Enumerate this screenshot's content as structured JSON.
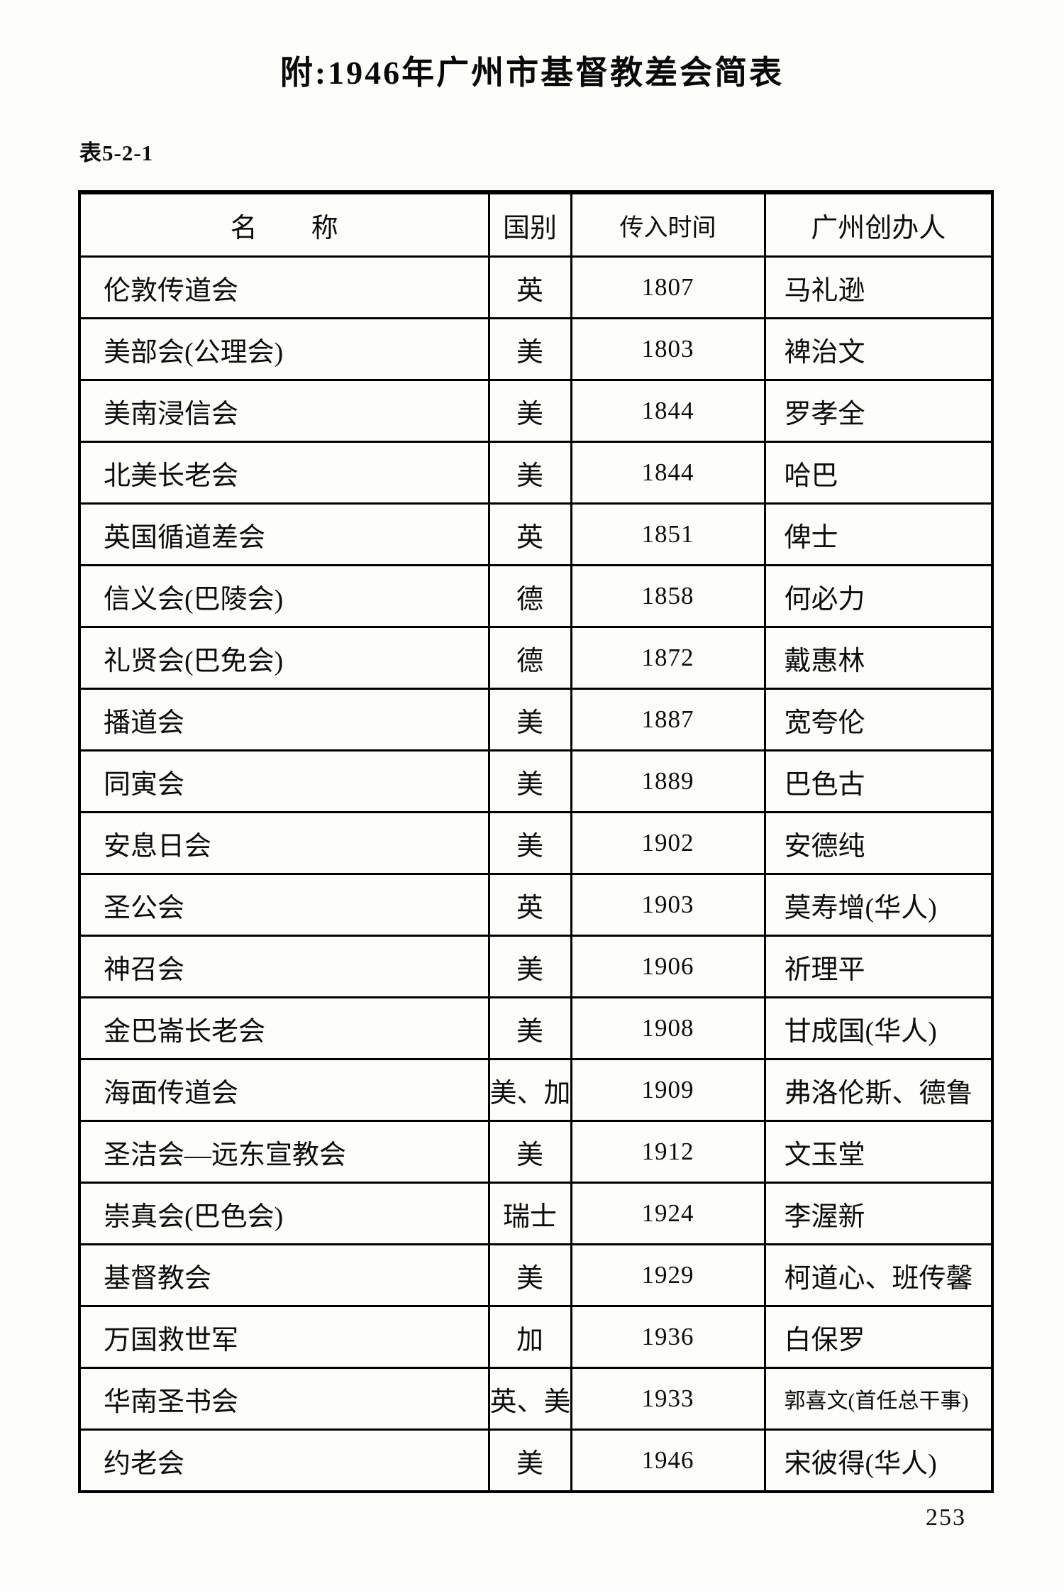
{
  "page": {
    "title": "附:1946年广州市基督教差会简表",
    "table_label": "表5-2-1",
    "page_number": "253"
  },
  "table": {
    "columns": [
      "名　　称",
      "国别",
      "传入时间",
      "广州创办人"
    ],
    "rows": [
      {
        "name": "伦敦传道会",
        "country": "英",
        "year": "1807",
        "founder": "马礼逊"
      },
      {
        "name": "美部会(公理会)",
        "country": "美",
        "year": "1803",
        "founder": "裨治文"
      },
      {
        "name": "美南浸信会",
        "country": "美",
        "year": "1844",
        "founder": "罗孝全"
      },
      {
        "name": "北美长老会",
        "country": "美",
        "year": "1844",
        "founder": "哈巴"
      },
      {
        "name": "英国循道差会",
        "country": "英",
        "year": "1851",
        "founder": "俾士"
      },
      {
        "name": "信义会(巴陵会)",
        "country": "德",
        "year": "1858",
        "founder": "何必力"
      },
      {
        "name": "礼贤会(巴免会)",
        "country": "德",
        "year": "1872",
        "founder": "戴惠林"
      },
      {
        "name": "播道会",
        "country": "美",
        "year": "1887",
        "founder": "宽夸伦"
      },
      {
        "name": "同寅会",
        "country": "美",
        "year": "1889",
        "founder": "巴色古"
      },
      {
        "name": "安息日会",
        "country": "美",
        "year": "1902",
        "founder": "安德纯"
      },
      {
        "name": "圣公会",
        "country": "英",
        "year": "1903",
        "founder": "莫寿增(华人)"
      },
      {
        "name": "神召会",
        "country": "美",
        "year": "1906",
        "founder": "祈理平"
      },
      {
        "name": "金巴崙长老会",
        "country": "美",
        "year": "1908",
        "founder": "甘成国(华人)"
      },
      {
        "name": "海面传道会",
        "country": "美、加",
        "year": "1909",
        "founder": "弗洛伦斯、德鲁"
      },
      {
        "name": "圣洁会—远东宣教会",
        "country": "美",
        "year": "1912",
        "founder": "文玉堂"
      },
      {
        "name": "崇真会(巴色会)",
        "country": "瑞士",
        "year": "1924",
        "founder": "李渥新"
      },
      {
        "name": "基督教会",
        "country": "美",
        "year": "1929",
        "founder": "柯道心、班传馨"
      },
      {
        "name": "万国救世军",
        "country": "加",
        "year": "1936",
        "founder": "白保罗"
      },
      {
        "name": "华南圣书会",
        "country": "英、美",
        "year": "1933",
        "founder": "郭喜文(首任总干事)"
      },
      {
        "name": "约老会",
        "country": "美",
        "year": "1946",
        "founder": "宋彼得(华人)"
      }
    ]
  }
}
